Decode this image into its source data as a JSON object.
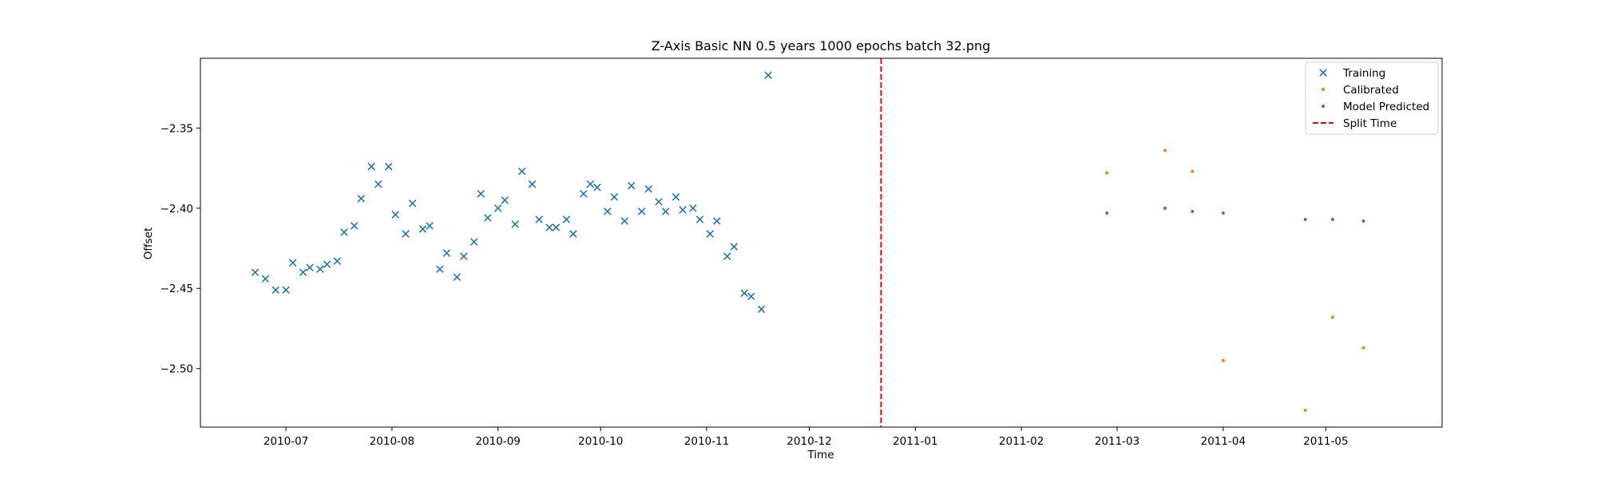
{
  "chart_data": {
    "type": "scatter",
    "title": "Z-Axis Basic NN 0.5 years 1000 epochs batch 32.png",
    "xlabel": "Time",
    "ylabel": "Offset",
    "xlim": [
      "2010-06-06",
      "2011-06-04"
    ],
    "ylim": [
      -2.5365,
      -2.3065
    ],
    "xticks": [
      "2010-07",
      "2010-08",
      "2010-09",
      "2010-10",
      "2010-11",
      "2010-12",
      "2011-01",
      "2011-02",
      "2011-03",
      "2011-04",
      "2011-05"
    ],
    "yticks": [
      -2.35,
      -2.4,
      -2.45,
      -2.5
    ],
    "grid": false,
    "legend_position": "top-right",
    "split_time": "2010-12-22",
    "series": [
      {
        "name": "Training",
        "marker": "x",
        "color": "#1f77b4",
        "points": [
          [
            "2010-06-22",
            -2.44
          ],
          [
            "2010-06-25",
            -2.444
          ],
          [
            "2010-06-28",
            -2.451
          ],
          [
            "2010-07-01",
            -2.451
          ],
          [
            "2010-07-03",
            -2.434
          ],
          [
            "2010-07-06",
            -2.44
          ],
          [
            "2010-07-08",
            -2.437
          ],
          [
            "2010-07-11",
            -2.438
          ],
          [
            "2010-07-13",
            -2.435
          ],
          [
            "2010-07-16",
            -2.433
          ],
          [
            "2010-07-18",
            -2.415
          ],
          [
            "2010-07-21",
            -2.411
          ],
          [
            "2010-07-23",
            -2.394
          ],
          [
            "2010-07-26",
            -2.374
          ],
          [
            "2010-07-28",
            -2.385
          ],
          [
            "2010-07-31",
            -2.374
          ],
          [
            "2010-08-02",
            -2.404
          ],
          [
            "2010-08-05",
            -2.416
          ],
          [
            "2010-08-07",
            -2.397
          ],
          [
            "2010-08-10",
            -2.413
          ],
          [
            "2010-08-12",
            -2.411
          ],
          [
            "2010-08-15",
            -2.438
          ],
          [
            "2010-08-17",
            -2.428
          ],
          [
            "2010-08-20",
            -2.443
          ],
          [
            "2010-08-22",
            -2.43
          ],
          [
            "2010-08-25",
            -2.421
          ],
          [
            "2010-08-27",
            -2.391
          ],
          [
            "2010-08-29",
            -2.406
          ],
          [
            "2010-09-01",
            -2.4
          ],
          [
            "2010-09-03",
            -2.395
          ],
          [
            "2010-09-06",
            -2.41
          ],
          [
            "2010-09-08",
            -2.377
          ],
          [
            "2010-09-11",
            -2.385
          ],
          [
            "2010-09-13",
            -2.407
          ],
          [
            "2010-09-16",
            -2.412
          ],
          [
            "2010-09-18",
            -2.412
          ],
          [
            "2010-09-21",
            -2.407
          ],
          [
            "2010-09-23",
            -2.416
          ],
          [
            "2010-09-26",
            -2.391
          ],
          [
            "2010-09-28",
            -2.385
          ],
          [
            "2010-09-30",
            -2.387
          ],
          [
            "2010-10-03",
            -2.402
          ],
          [
            "2010-10-05",
            -2.393
          ],
          [
            "2010-10-08",
            -2.408
          ],
          [
            "2010-10-10",
            -2.386
          ],
          [
            "2010-10-13",
            -2.402
          ],
          [
            "2010-10-15",
            -2.388
          ],
          [
            "2010-10-18",
            -2.396
          ],
          [
            "2010-10-20",
            -2.402
          ],
          [
            "2010-10-23",
            -2.393
          ],
          [
            "2010-10-25",
            -2.401
          ],
          [
            "2010-10-28",
            -2.4
          ],
          [
            "2010-10-30",
            -2.407
          ],
          [
            "2010-11-02",
            -2.416
          ],
          [
            "2010-11-04",
            -2.408
          ],
          [
            "2010-11-07",
            -2.43
          ],
          [
            "2010-11-09",
            -2.424
          ],
          [
            "2010-11-12",
            -2.453
          ],
          [
            "2010-11-14",
            -2.455
          ],
          [
            "2010-11-17",
            -2.463
          ],
          [
            "2010-11-19",
            -2.317
          ]
        ]
      },
      {
        "name": "Calibrated",
        "marker": "dot",
        "color": "#ff7f0e",
        "points": [
          [
            "2011-02-26",
            -2.378
          ],
          [
            "2011-03-15",
            -2.364
          ],
          [
            "2011-03-23",
            -2.377
          ],
          [
            "2011-04-01",
            -2.495
          ],
          [
            "2011-04-25",
            -2.526
          ],
          [
            "2011-05-03",
            -2.468
          ],
          [
            "2011-05-12",
            -2.487
          ]
        ]
      },
      {
        "name": "Model Predicted",
        "marker": "dot",
        "color": "#2ca02c",
        "points": [
          [
            "2011-02-26",
            -2.403
          ],
          [
            "2011-03-15",
            -2.4
          ],
          [
            "2011-03-23",
            -2.402
          ],
          [
            "2011-04-01",
            -2.403
          ],
          [
            "2011-04-25",
            -2.407
          ],
          [
            "2011-05-03",
            -2.407
          ],
          [
            "2011-05-12",
            -2.408
          ]
        ]
      },
      {
        "name": "Split Time",
        "marker": "dashed-line",
        "color": "#ff0000"
      }
    ]
  }
}
